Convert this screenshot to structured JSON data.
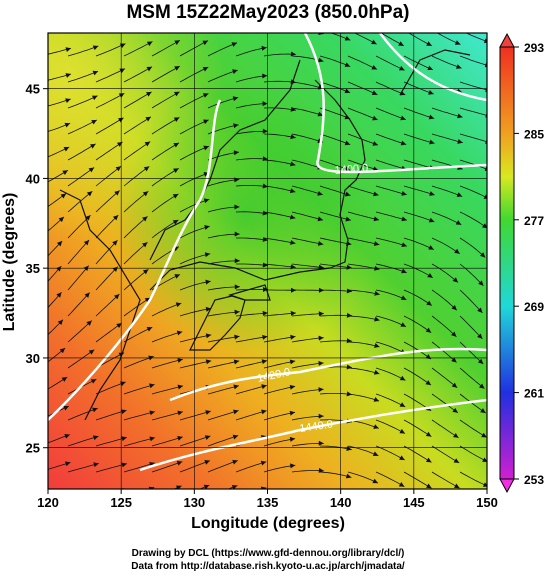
{
  "title": "MSM 15Z22May2023 (850.0hPa)",
  "x_axis": {
    "label": "Longitude (degrees)",
    "range": [
      120,
      150
    ],
    "ticks": [
      120,
      125,
      130,
      135,
      140,
      145,
      150
    ]
  },
  "y_axis": {
    "label": "Latitude  (degrees)",
    "range": [
      22.7,
      48.1
    ],
    "ticks": [
      25,
      30,
      35,
      40,
      45
    ]
  },
  "colorbar": {
    "range": [
      253,
      293
    ],
    "ticks": [
      253,
      261,
      269,
      277,
      285,
      293
    ]
  },
  "contour_labels": [
    "1400.0",
    "1420.0",
    "1440.0"
  ],
  "credits": [
    "Drawing by DCL (https://www.gfd-dennou.org/library/dcl/)",
    "Data from http://database.rish.kyoto-u.ac.jp/arch/jmadata/"
  ]
}
